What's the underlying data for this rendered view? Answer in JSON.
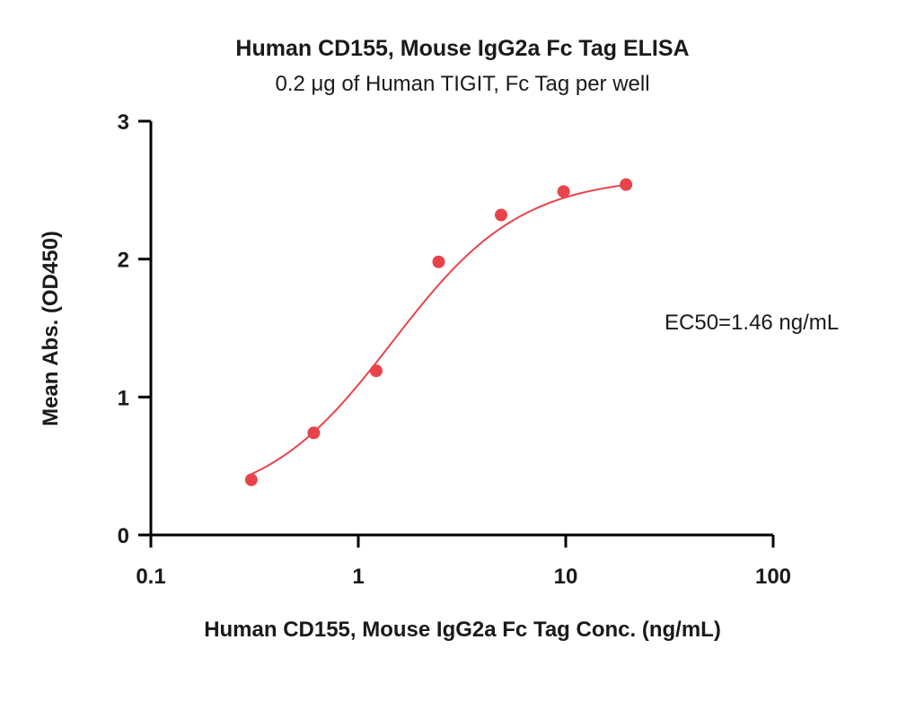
{
  "chart_data": {
    "type": "scatter",
    "title": "Human CD155, Mouse IgG2a Fc Tag ELISA",
    "subtitle": "0.2 μg of Human TIGIT, Fc Tag per well",
    "xlabel": "Human CD155, Mouse IgG2a Fc Tag Conc. (ng/mL)",
    "ylabel": "Mean Abs. (OD450)",
    "xscale": "log",
    "xlim": [
      0.1,
      100
    ],
    "ylim": [
      0,
      3
    ],
    "xticks": [
      0.1,
      1,
      10,
      100
    ],
    "xtick_labels": [
      "0.1",
      "1",
      "10",
      "100"
    ],
    "yticks": [
      0,
      1,
      2,
      3
    ],
    "ytick_labels": [
      "0",
      "1",
      "2",
      "3"
    ],
    "grid": false,
    "color": "#e8434a",
    "series": [
      {
        "x": [
          0.305,
          0.61,
          1.22,
          2.44,
          4.88,
          9.77,
          19.53
        ],
        "y": [
          0.4,
          0.74,
          1.19,
          1.98,
          2.32,
          2.49,
          2.54
        ],
        "fit": "4PL"
      }
    ],
    "annotation": "EC50=1.46 ng/mL"
  }
}
